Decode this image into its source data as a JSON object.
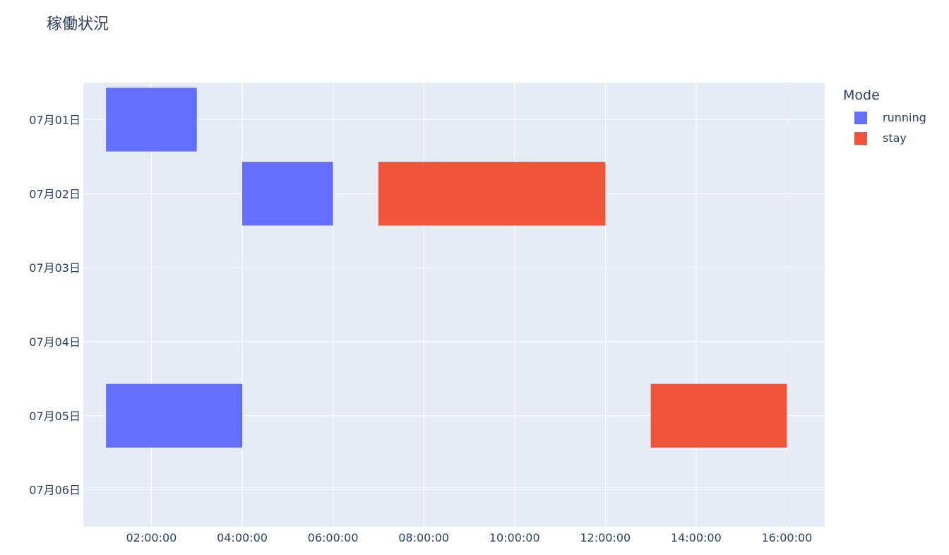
{
  "chart_data": {
    "type": "bar",
    "orientation": "horizontal",
    "title": "稼働状況",
    "xlabel": "",
    "ylabel": "",
    "xlim": [
      "00:30:00",
      "16:50:00"
    ],
    "x_ticks": [
      "02:00:00",
      "04:00:00",
      "06:00:00",
      "08:00:00",
      "10:00:00",
      "12:00:00",
      "14:00:00",
      "16:00:00"
    ],
    "categories": [
      "07月01日",
      "07月02日",
      "07月03日",
      "07月04日",
      "07月05日",
      "07月06日"
    ],
    "legend": {
      "title": "Mode",
      "position": "top-right"
    },
    "grid": true,
    "background": "#e5ecf6",
    "series": [
      {
        "name": "running",
        "color": "#636efa",
        "bars": [
          {
            "category": "07月01日",
            "start": "01:00:00",
            "end": "03:00:00"
          },
          {
            "category": "07月02日",
            "start": "04:00:00",
            "end": "06:00:00"
          },
          {
            "category": "07月05日",
            "start": "01:00:00",
            "end": "04:00:00"
          }
        ]
      },
      {
        "name": "stay",
        "color": "#ef553b",
        "bars": [
          {
            "category": "07月02日",
            "start": "07:00:00",
            "end": "12:00:00"
          },
          {
            "category": "07月05日",
            "start": "13:00:00",
            "end": "16:00:00"
          }
        ]
      }
    ]
  }
}
